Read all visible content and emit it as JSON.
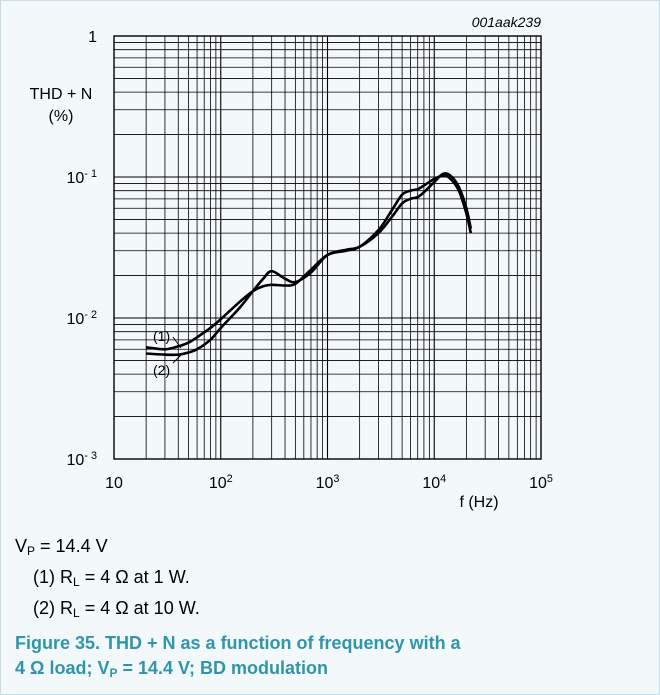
{
  "chart_data": {
    "type": "line",
    "figure_id": "001aak239",
    "ylabel_line1": "THD + N",
    "ylabel_line2": "(%)",
    "xlabel": "f (Hz)",
    "x_scale": "log",
    "y_scale": "log",
    "xlim": [
      10,
      100000
    ],
    "ylim": [
      0.001,
      1
    ],
    "grid": true,
    "x_ticks": [
      {
        "base": "10",
        "exp": ""
      },
      {
        "base": "10",
        "exp": "2"
      },
      {
        "base": "10",
        "exp": "3"
      },
      {
        "base": "10",
        "exp": "4"
      },
      {
        "base": "10",
        "exp": "5"
      }
    ],
    "y_ticks": [
      {
        "base": "1",
        "exp": ""
      },
      {
        "base": "10",
        "exp": "- 1"
      },
      {
        "base": "10",
        "exp": "- 2"
      },
      {
        "base": "10",
        "exp": "- 3"
      }
    ],
    "series": [
      {
        "name": "(1)",
        "x": [
          20,
          30,
          40,
          50,
          60,
          80,
          100,
          150,
          200,
          250,
          300,
          400,
          500,
          700,
          1000,
          1500,
          2000,
          3000,
          4000,
          5000,
          6000,
          7000,
          8000,
          10000,
          12000,
          14000,
          17000,
          20000,
          22000
        ],
        "y": [
          0.0062,
          0.006,
          0.0063,
          0.0067,
          0.0073,
          0.0085,
          0.0098,
          0.013,
          0.0155,
          0.0168,
          0.0172,
          0.017,
          0.0175,
          0.022,
          0.028,
          0.03,
          0.032,
          0.042,
          0.058,
          0.075,
          0.08,
          0.082,
          0.087,
          0.097,
          0.102,
          0.098,
          0.08,
          0.055,
          0.04
        ]
      },
      {
        "name": "(2)",
        "x": [
          20,
          30,
          40,
          50,
          60,
          80,
          100,
          150,
          200,
          250,
          300,
          400,
          500,
          700,
          1000,
          1500,
          2000,
          3000,
          4000,
          5000,
          6000,
          7000,
          8000,
          10000,
          12000,
          14000,
          17000,
          20000,
          22000
        ],
        "y": [
          0.0056,
          0.0055,
          0.0055,
          0.0057,
          0.006,
          0.007,
          0.0085,
          0.0118,
          0.0155,
          0.019,
          0.0215,
          0.019,
          0.018,
          0.021,
          0.028,
          0.0305,
          0.032,
          0.04,
          0.052,
          0.065,
          0.07,
          0.072,
          0.078,
          0.092,
          0.105,
          0.103,
          0.085,
          0.06,
          0.043
        ]
      }
    ]
  },
  "notes": {
    "vp_prefix": "V",
    "vp_sub": "P",
    "vp_value": " = 14.4 V",
    "note1_prefix": "(1) R",
    "note1_sub": "L",
    "note1_value": " = 4 Ω at 1 W.",
    "note2_prefix": "(2) R",
    "note2_sub": "L",
    "note2_value": " = 4 Ω at 10 W."
  },
  "caption": {
    "line1": "Figure 35. THD + N as a function of frequency with a",
    "line2_prefix": "4 Ω load; V",
    "line2_sub": "P",
    "line2_suffix": " = 14.4 V; BD modulation"
  }
}
